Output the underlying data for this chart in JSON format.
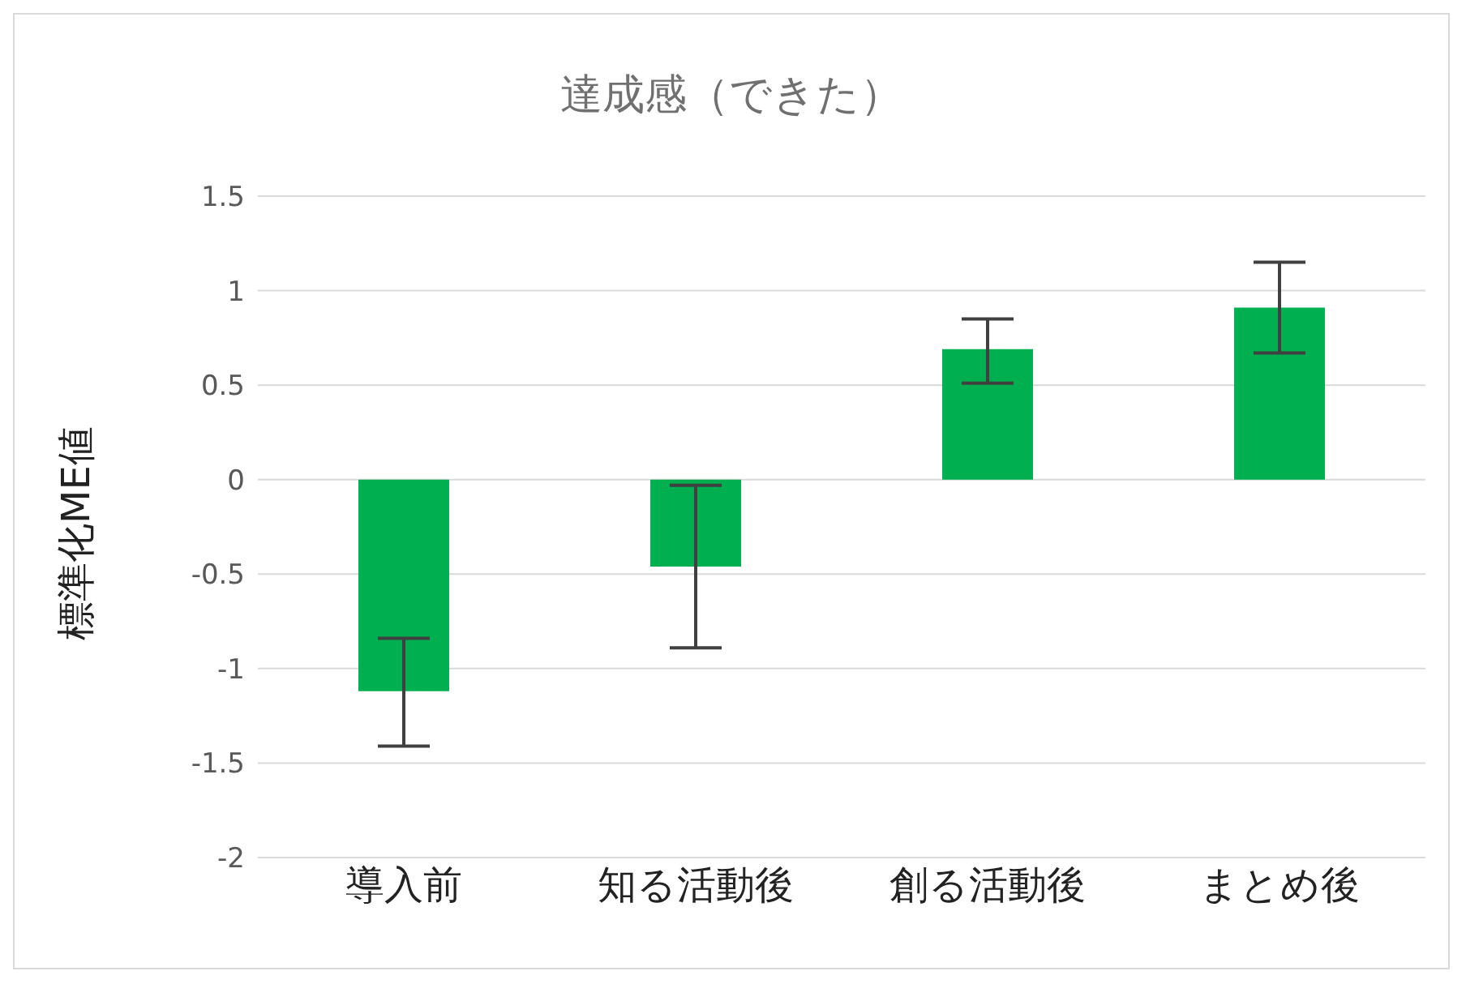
{
  "chart_data": {
    "type": "bar",
    "title": "達成感（できた）",
    "ylabel": "標準化ME値",
    "categories": [
      "導入前",
      "知る活動後",
      "創る活動後",
      "まとめ後"
    ],
    "values": [
      -1.12,
      -0.46,
      0.69,
      0.91
    ],
    "errors": [
      [
        -1.41,
        -0.84
      ],
      [
        -0.89,
        -0.03
      ],
      [
        0.51,
        0.85
      ],
      [
        0.67,
        1.15
      ]
    ],
    "color": "#00b050",
    "ylim": [
      -2,
      1.5
    ],
    "yticks": [
      -2,
      -1.5,
      -1,
      -0.5,
      0,
      0.5,
      1,
      1.5
    ],
    "grid": "y",
    "legend": false
  }
}
